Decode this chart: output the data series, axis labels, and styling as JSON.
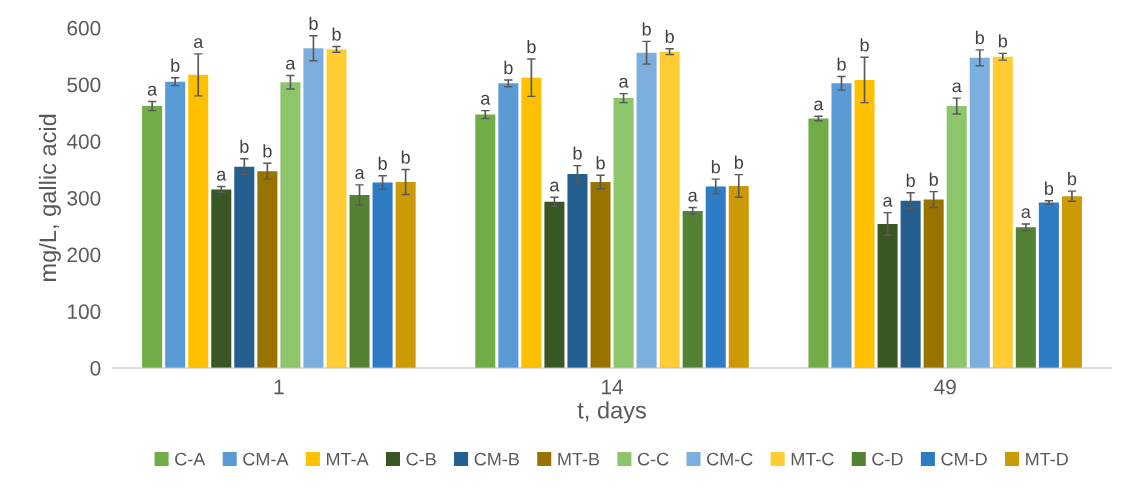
{
  "chart_data": {
    "type": "bar",
    "xlabel": "t, days",
    "ylabel": "mg/L, gallic acid",
    "categories": [
      "1",
      "14",
      "49"
    ],
    "ylim": [
      0,
      600
    ],
    "yticks": [
      0,
      100,
      200,
      300,
      400,
      500,
      600
    ],
    "grid": false,
    "legend": "bottom",
    "series": [
      {
        "name": "C-A",
        "color": "#70ad47",
        "values": [
          462,
          447,
          440
        ],
        "errors": [
          8,
          7,
          4
        ],
        "value_labels": [
          "a",
          "a",
          "a"
        ]
      },
      {
        "name": "CM-A",
        "color": "#5b9bd5",
        "values": [
          505,
          502,
          502
        ],
        "errors": [
          7,
          6,
          12
        ],
        "value_labels": [
          "b",
          "b",
          "b"
        ]
      },
      {
        "name": "MT-A",
        "color": "#ffc000",
        "values": [
          517,
          512,
          508
        ],
        "errors": [
          37,
          33,
          40
        ],
        "value_labels": [
          "a",
          "b",
          "b"
        ]
      },
      {
        "name": "C-B",
        "color": "#385723",
        "values": [
          315,
          293,
          254
        ],
        "errors": [
          5,
          8,
          20
        ],
        "value_labels": [
          "a",
          "a",
          "a"
        ]
      },
      {
        "name": "CM-B",
        "color": "#255e91",
        "values": [
          355,
          342,
          295
        ],
        "errors": [
          14,
          15,
          14
        ],
        "value_labels": [
          "b",
          "b",
          "b"
        ]
      },
      {
        "name": "MT-B",
        "color": "#997300",
        "values": [
          347,
          328,
          297
        ],
        "errors": [
          14,
          12,
          14
        ],
        "value_labels": [
          "b",
          "b",
          "b"
        ]
      },
      {
        "name": "C-C",
        "color": "#8dc56a",
        "values": [
          504,
          476,
          462
        ],
        "errors": [
          12,
          8,
          14
        ],
        "value_labels": [
          "a",
          "a",
          "a"
        ]
      },
      {
        "name": "CM-C",
        "color": "#7cafdd",
        "values": [
          564,
          556,
          547
        ],
        "errors": [
          22,
          20,
          14
        ],
        "value_labels": [
          "b",
          "b",
          "b"
        ]
      },
      {
        "name": "MT-C",
        "color": "#ffcd33",
        "values": [
          562,
          558,
          549
        ],
        "errors": [
          5,
          5,
          6
        ],
        "value_labels": [
          "b",
          "b",
          "b"
        ]
      },
      {
        "name": "C-D",
        "color": "#548235",
        "values": [
          305,
          277,
          248
        ],
        "errors": [
          18,
          6,
          6
        ],
        "value_labels": [
          "a",
          "a",
          "a"
        ]
      },
      {
        "name": "CM-D",
        "color": "#2e7bc6",
        "values": [
          327,
          320,
          292
        ],
        "errors": [
          12,
          13,
          3
        ],
        "value_labels": [
          "b",
          "b",
          "b"
        ]
      },
      {
        "name": "MT-D",
        "color": "#cc9a06",
        "values": [
          328,
          321,
          303
        ],
        "errors": [
          22,
          20,
          9
        ],
        "value_labels": [
          "b",
          "b",
          "b"
        ]
      }
    ]
  }
}
